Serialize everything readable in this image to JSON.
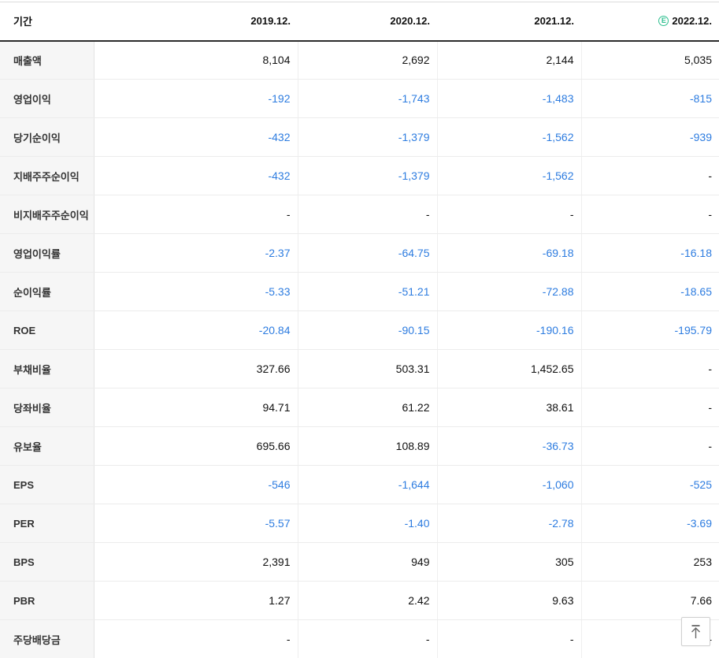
{
  "colors": {
    "negative_value_blue": "#2d7ce0",
    "positive_value_black": "#111111",
    "estimate_badge_green": "#2ebf8f",
    "label_column_bg": "#f6f6f6"
  },
  "table": {
    "period_header": "기간",
    "year_columns": [
      "2019.12.",
      "2020.12.",
      "2021.12.",
      "2022.12."
    ],
    "estimate_badge_letter": "E",
    "estimate_column_index": 3,
    "rows": [
      {
        "label": "매출액",
        "values": [
          "8,104",
          "2,692",
          "2,144",
          "5,035"
        ],
        "group_start": false
      },
      {
        "label": "영업이익",
        "values": [
          "-192",
          "-1,743",
          "-1,483",
          "-815"
        ],
        "group_start": false
      },
      {
        "label": "당기순이익",
        "values": [
          "-432",
          "-1,379",
          "-1,562",
          "-939"
        ],
        "group_start": false
      },
      {
        "label": "지배주주순이익",
        "values": [
          "-432",
          "-1,379",
          "-1,562",
          "-"
        ],
        "group_start": false
      },
      {
        "label": "비지배주주순이익",
        "values": [
          "-",
          "-",
          "-",
          "-"
        ],
        "group_start": false
      },
      {
        "label": "영업이익률",
        "values": [
          "-2.37",
          "-64.75",
          "-69.18",
          "-16.18"
        ],
        "group_start": true
      },
      {
        "label": "순이익률",
        "values": [
          "-5.33",
          "-51.21",
          "-72.88",
          "-18.65"
        ],
        "group_start": false
      },
      {
        "label": "ROE",
        "values": [
          "-20.84",
          "-90.15",
          "-190.16",
          "-195.79"
        ],
        "group_start": false
      },
      {
        "label": "부채비율",
        "values": [
          "327.66",
          "503.31",
          "1,452.65",
          "-"
        ],
        "group_start": true
      },
      {
        "label": "당좌비율",
        "values": [
          "94.71",
          "61.22",
          "38.61",
          "-"
        ],
        "group_start": false
      },
      {
        "label": "유보율",
        "values": [
          "695.66",
          "108.89",
          "-36.73",
          "-"
        ],
        "group_start": false
      },
      {
        "label": "EPS",
        "values": [
          "-546",
          "-1,644",
          "-1,060",
          "-525"
        ],
        "group_start": true
      },
      {
        "label": "PER",
        "values": [
          "-5.57",
          "-1.40",
          "-2.78",
          "-3.69"
        ],
        "group_start": false
      },
      {
        "label": "BPS",
        "values": [
          "2,391",
          "949",
          "305",
          "253"
        ],
        "group_start": false
      },
      {
        "label": "PBR",
        "values": [
          "1.27",
          "2.42",
          "9.63",
          "7.66"
        ],
        "group_start": false
      },
      {
        "label": "주당배당금",
        "values": [
          "-",
          "-",
          "-",
          "-"
        ],
        "group_start": true
      }
    ]
  },
  "scroll_top_button": {
    "icon": "arrow-to-top"
  }
}
